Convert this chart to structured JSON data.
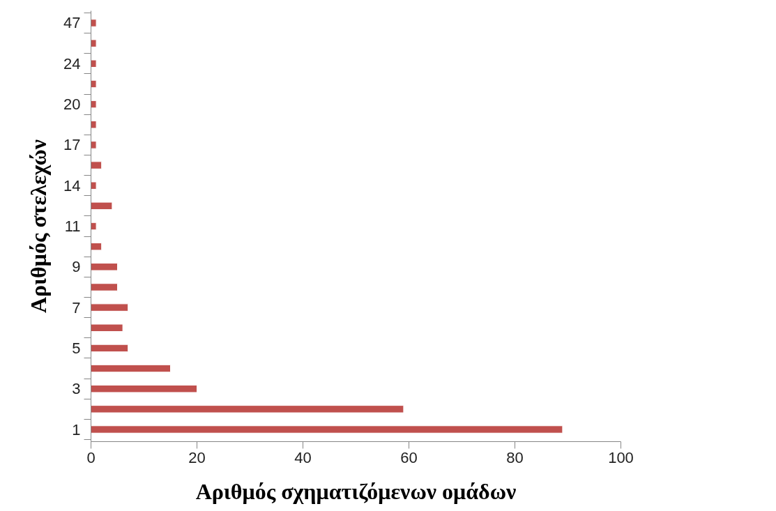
{
  "chart_data": {
    "type": "bar",
    "orientation": "horizontal",
    "xlabel": "Αριθμός σχηματιζόμενων ομάδων",
    "ylabel": "Αριθμός στελεχών",
    "categories": [
      "47",
      null,
      "24",
      null,
      "20",
      null,
      "17",
      null,
      "14",
      null,
      "11",
      null,
      "9",
      null,
      "7",
      null,
      "5",
      null,
      "3",
      null,
      "1"
    ],
    "values": [
      1,
      1,
      1,
      1,
      1,
      1,
      1,
      2,
      1,
      4,
      1,
      2,
      5,
      5,
      7,
      6,
      7,
      15,
      20,
      59,
      89
    ],
    "color": "#c0504d",
    "xlim": [
      0,
      100
    ],
    "xticks": [
      0,
      20,
      40,
      60,
      80,
      100
    ],
    "grid": false
  }
}
